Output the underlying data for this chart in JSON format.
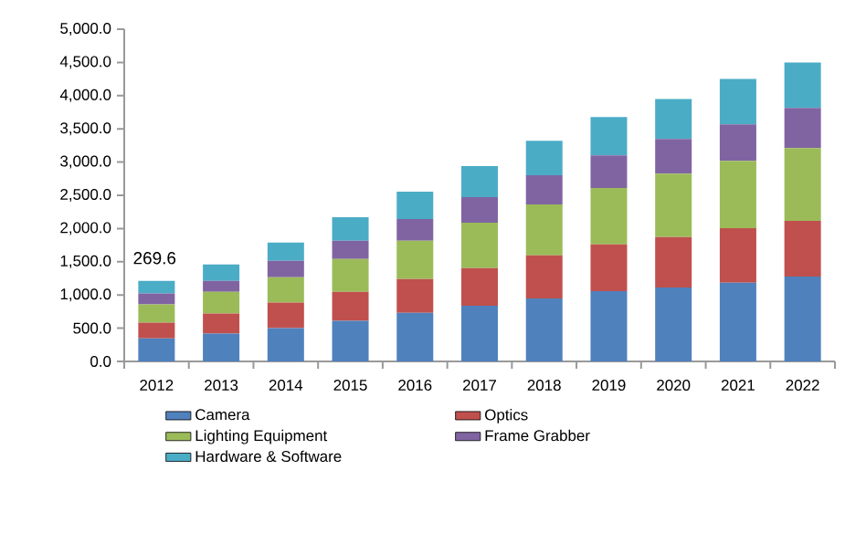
{
  "chart_data": {
    "type": "bar",
    "stacked": true,
    "categories": [
      "2012",
      "2013",
      "2014",
      "2015",
      "2016",
      "2017",
      "2018",
      "2019",
      "2020",
      "2021",
      "2022"
    ],
    "series": [
      {
        "name": "Camera",
        "color": "#4f81bd",
        "values": [
          347,
          420,
          502,
          611,
          730,
          839,
          949,
          1058,
          1113,
          1186,
          1277
        ]
      },
      {
        "name": "Optics",
        "color": "#c0504d",
        "values": [
          237,
          301,
          383,
          438,
          511,
          566,
          648,
          703,
          757,
          821,
          840
        ]
      },
      {
        "name": "Lighting Equipment",
        "color": "#9bbb59",
        "values": [
          274,
          328,
          383,
          493,
          575,
          684,
          766,
          848,
          958,
          1013,
          1095
        ]
      },
      {
        "name": "Frame Grabber",
        "color": "#8064a2",
        "values": [
          164,
          165,
          247,
          274,
          328,
          384,
          438,
          493,
          520,
          547,
          602
        ]
      },
      {
        "name": "Hardware & Software",
        "color": "#4bacc6",
        "values": [
          192,
          246,
          273,
          356,
          411,
          465,
          520,
          575,
          602,
          685,
          684
        ]
      }
    ],
    "ylim": [
      0,
      5000
    ],
    "yticks": [
      {
        "value": 0,
        "label": "0.0"
      },
      {
        "value": 500,
        "label": "500.0"
      },
      {
        "value": 1000,
        "label": "1,000.0"
      },
      {
        "value": 1500,
        "label": "1,500.0"
      },
      {
        "value": 2000,
        "label": "2,000.0"
      },
      {
        "value": 2500,
        "label": "2,500.0"
      },
      {
        "value": 3000,
        "label": "3,000.0"
      },
      {
        "value": 3500,
        "label": "3,500.0"
      },
      {
        "value": 4000,
        "label": "4,000.0"
      },
      {
        "value": 4500,
        "label": "4,500.0"
      },
      {
        "value": 5000,
        "label": "5,000.0"
      }
    ],
    "annotations": [
      "269.6"
    ],
    "legend": "bottom"
  }
}
